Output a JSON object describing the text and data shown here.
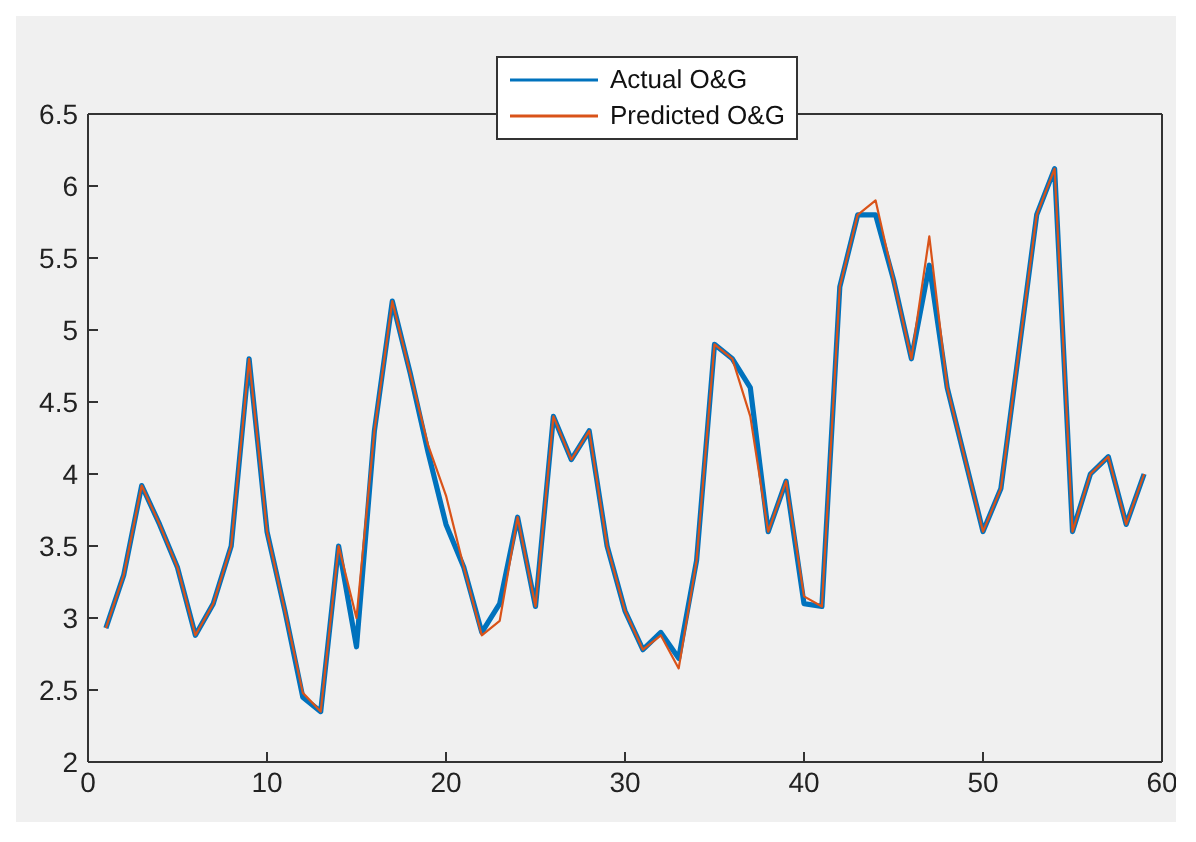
{
  "chart_data": {
    "type": "line",
    "x": [
      1,
      2,
      3,
      4,
      5,
      6,
      7,
      8,
      9,
      10,
      11,
      12,
      13,
      14,
      15,
      16,
      17,
      18,
      19,
      20,
      21,
      22,
      23,
      24,
      25,
      26,
      27,
      28,
      29,
      30,
      31,
      32,
      33,
      34,
      35,
      36,
      37,
      38,
      39,
      40,
      41,
      42,
      43,
      44,
      45,
      46,
      47,
      48,
      49,
      50,
      51,
      52,
      53,
      54,
      55,
      56,
      57,
      58,
      59
    ],
    "series": [
      {
        "name": "Actual O&G",
        "color": "#0072bd",
        "values": [
          2.93,
          3.3,
          3.92,
          3.65,
          3.35,
          2.88,
          3.1,
          3.5,
          4.8,
          3.6,
          3.05,
          2.45,
          2.35,
          3.5,
          2.8,
          4.3,
          5.2,
          4.7,
          4.15,
          3.65,
          3.35,
          2.9,
          3.1,
          3.7,
          3.08,
          4.4,
          4.1,
          4.3,
          3.5,
          3.05,
          2.78,
          2.9,
          2.72,
          3.4,
          4.9,
          4.8,
          4.6,
          3.6,
          3.95,
          3.1,
          3.08,
          5.3,
          5.8,
          5.8,
          5.35,
          4.8,
          5.45,
          4.6,
          4.1,
          3.6,
          3.9,
          4.85,
          5.8,
          6.12,
          3.6,
          4.0,
          4.12,
          3.65,
          4.0
        ]
      },
      {
        "name": "Predicted O&G",
        "color": "#d95319",
        "values": [
          2.93,
          3.3,
          3.92,
          3.65,
          3.35,
          2.88,
          3.1,
          3.5,
          4.8,
          3.6,
          3.05,
          2.48,
          2.35,
          3.5,
          3.0,
          4.3,
          5.2,
          4.7,
          4.2,
          3.85,
          3.35,
          2.88,
          2.98,
          3.7,
          3.08,
          4.4,
          4.1,
          4.3,
          3.5,
          3.05,
          2.78,
          2.88,
          2.65,
          3.4,
          4.9,
          4.8,
          4.4,
          3.6,
          3.95,
          3.15,
          3.08,
          5.3,
          5.8,
          5.9,
          5.35,
          4.8,
          5.65,
          4.6,
          4.1,
          3.6,
          3.9,
          4.85,
          5.8,
          6.12,
          3.6,
          4.0,
          4.12,
          3.65,
          4.0
        ]
      }
    ],
    "xlim": [
      0,
      60
    ],
    "xticks": [
      0,
      10,
      20,
      30,
      40,
      50,
      60
    ],
    "ylim": [
      2,
      6.5
    ],
    "yticks": [
      2,
      2.5,
      3,
      3.5,
      4,
      4.5,
      5,
      5.5,
      6,
      6.5
    ],
    "grid": false,
    "legend": "top",
    "marker": "none",
    "line_style": "solid"
  }
}
